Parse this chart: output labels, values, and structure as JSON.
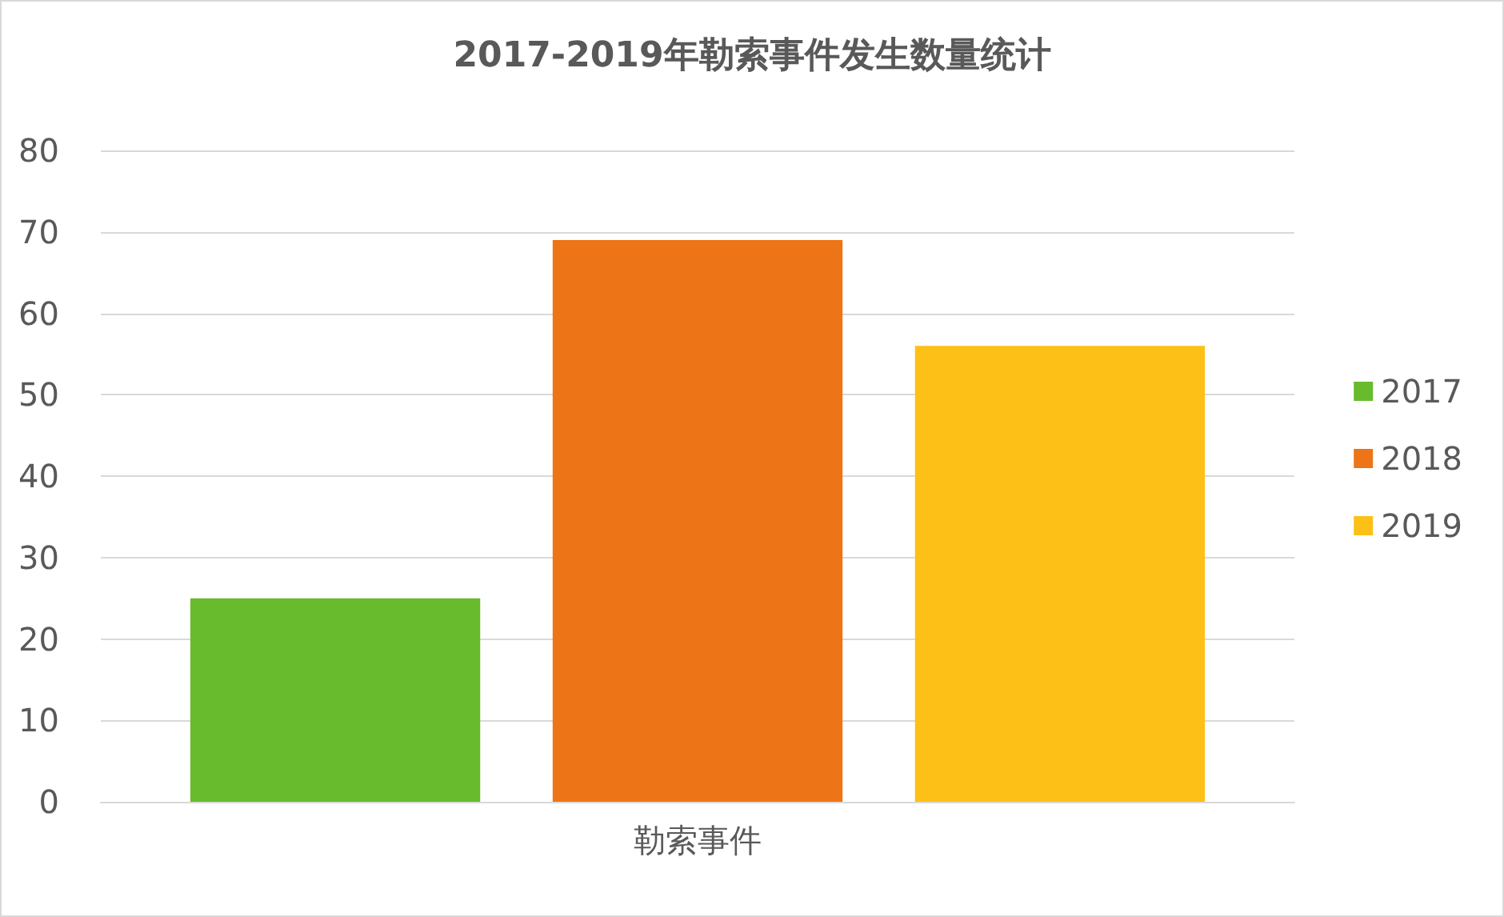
{
  "chart_data": {
    "type": "bar",
    "title": "2017-2019年勒索事件发生数量统计",
    "categories": [
      "勒索事件"
    ],
    "series": [
      {
        "name": "2017",
        "color": "#68bb2c",
        "values": [
          25
        ]
      },
      {
        "name": "2018",
        "color": "#ee7418",
        "values": [
          69
        ]
      },
      {
        "name": "2019",
        "color": "#fdc016",
        "values": [
          56
        ]
      }
    ],
    "ylim": [
      0,
      80
    ],
    "yticks": [
      0,
      10,
      20,
      30,
      40,
      50,
      60,
      70,
      80
    ],
    "grid": "y",
    "legend": "right"
  }
}
